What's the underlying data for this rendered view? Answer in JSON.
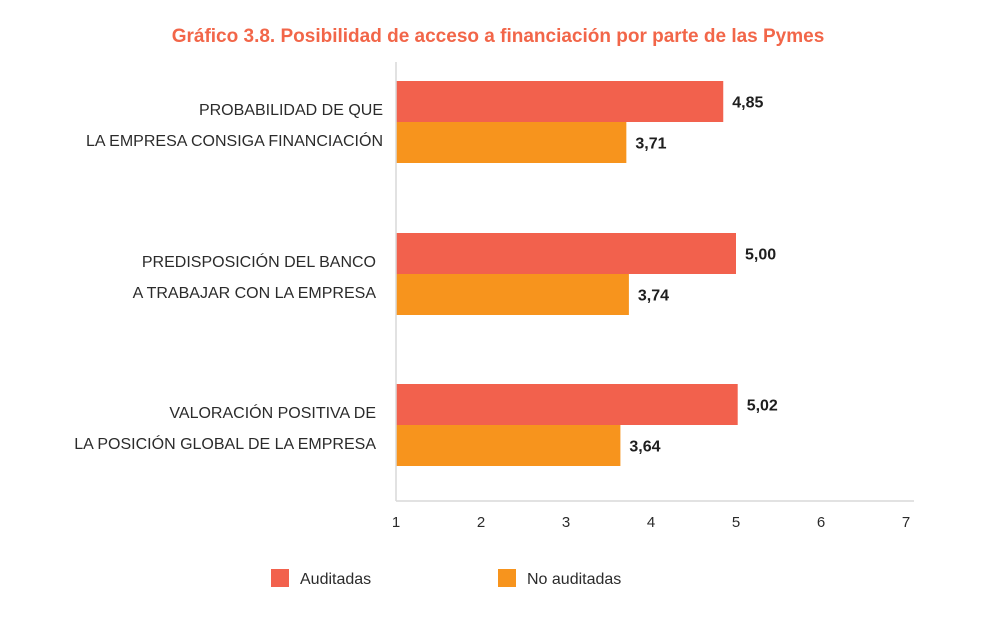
{
  "chart_data": {
    "type": "bar",
    "orientation": "horizontal",
    "title": "Gráfico 3.8. Posibilidad de acceso a financiación por parte de las Pymes",
    "title_color": "#F26649",
    "categories": [
      [
        "PROBABILIDAD DE QUE",
        "LA EMPRESA CONSIGA FINANCIACIÓN"
      ],
      [
        "PREDISPOSICIÓN DEL BANCO",
        "A TRABAJAR CON LA EMPRESA"
      ],
      [
        "VALORACIÓN POSITIVA DE",
        "LA POSICIÓN GLOBAL DE LA EMPRESA"
      ]
    ],
    "series": [
      {
        "name": "Auditadas",
        "color": "#F2614D",
        "values": [
          4.85,
          5.0,
          5.02
        ],
        "labels": [
          "4,85",
          "5,00",
          "5,02"
        ]
      },
      {
        "name": "No auditadas",
        "color": "#F7941D",
        "values": [
          3.71,
          3.74,
          3.64
        ],
        "labels": [
          "3,71",
          "3,74",
          "3,64"
        ]
      }
    ],
    "xlim": [
      1,
      7
    ],
    "xticks": [
      1,
      2,
      3,
      4,
      5,
      6,
      7
    ],
    "grid": false,
    "legend_position": "bottom"
  }
}
